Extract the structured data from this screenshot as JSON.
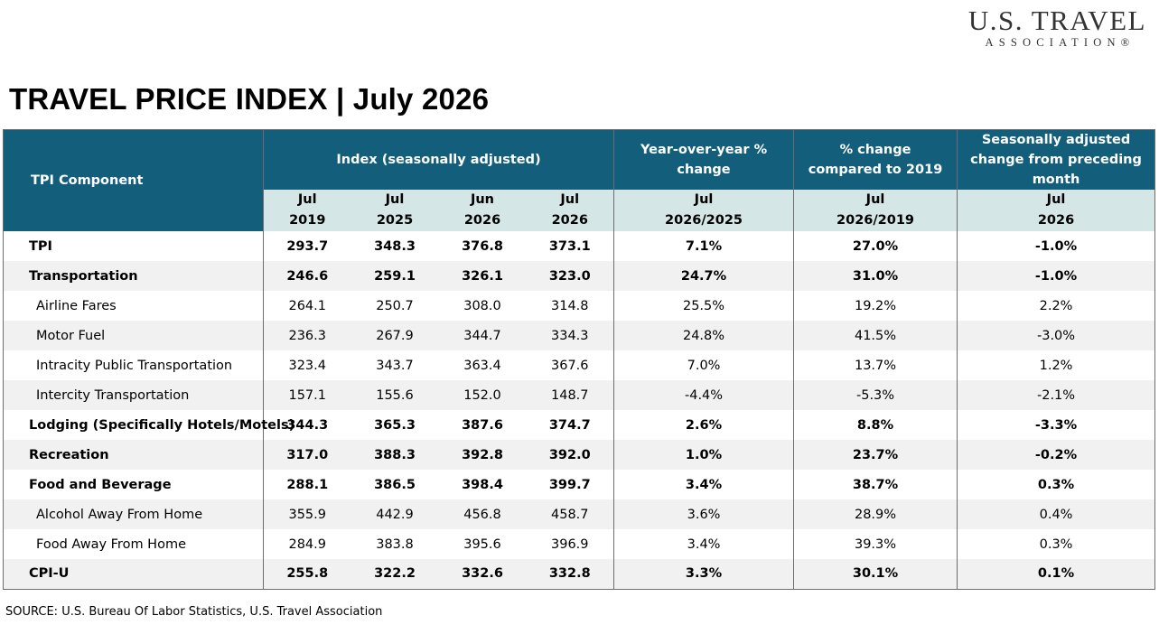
{
  "logo": {
    "main": "U.S. TRAVEL",
    "sub": "ASSOCIATION®"
  },
  "title": "TRAVEL PRICE INDEX  | July 2026",
  "table": {
    "component_header": "TPI Component",
    "group_headers": {
      "index": "Index  (seasonally adjusted)",
      "yoy": "Year-over-year % change",
      "vs2019": "% change compared to 2019",
      "sa": "Seasonally adjusted change from preceding month"
    },
    "subheaders": [
      {
        "top": "Jul",
        "bottom": "2019"
      },
      {
        "top": "Jul",
        "bottom": "2025"
      },
      {
        "top": "Jun",
        "bottom": "2026"
      },
      {
        "top": "Jul",
        "bottom": "2026"
      },
      {
        "top": "Jul",
        "bottom": "2026/2025"
      },
      {
        "top": "Jul",
        "bottom": "2026/2019"
      },
      {
        "top": "Jul",
        "bottom": "2026"
      }
    ],
    "rows": [
      {
        "label": "TPI",
        "bold": true,
        "indent": false,
        "values": [
          "293.7",
          "348.3",
          "376.8",
          "373.1",
          "7.1%",
          "27.0%",
          "-1.0%"
        ]
      },
      {
        "label": "Transportation",
        "bold": true,
        "indent": false,
        "values": [
          "246.6",
          "259.1",
          "326.1",
          "323.0",
          "24.7%",
          "31.0%",
          "-1.0%"
        ]
      },
      {
        "label": "Airline Fares",
        "bold": false,
        "indent": true,
        "values": [
          "264.1",
          "250.7",
          "308.0",
          "314.8",
          "25.5%",
          "19.2%",
          "2.2%"
        ]
      },
      {
        "label": "Motor Fuel",
        "bold": false,
        "indent": true,
        "values": [
          "236.3",
          "267.9",
          "344.7",
          "334.3",
          "24.8%",
          "41.5%",
          "-3.0%"
        ]
      },
      {
        "label": "Intracity Public Transportation",
        "bold": false,
        "indent": true,
        "values": [
          "323.4",
          "343.7",
          "363.4",
          "367.6",
          "7.0%",
          "13.7%",
          "1.2%"
        ]
      },
      {
        "label": "Intercity Transportation",
        "bold": false,
        "indent": true,
        "values": [
          "157.1",
          "155.6",
          "152.0",
          "148.7",
          "-4.4%",
          "-5.3%",
          "-2.1%"
        ]
      },
      {
        "label": "Lodging (Specifically Hotels/Motels)",
        "bold": true,
        "indent": false,
        "values": [
          "344.3",
          "365.3",
          "387.6",
          "374.7",
          "2.6%",
          "8.8%",
          "-3.3%"
        ]
      },
      {
        "label": "Recreation",
        "bold": true,
        "indent": false,
        "values": [
          "317.0",
          "388.3",
          "392.8",
          "392.0",
          "1.0%",
          "23.7%",
          "-0.2%"
        ]
      },
      {
        "label": "Food and Beverage",
        "bold": true,
        "indent": false,
        "values": [
          "288.1",
          "386.5",
          "398.4",
          "399.7",
          "3.4%",
          "38.7%",
          "0.3%"
        ]
      },
      {
        "label": "Alcohol Away From Home",
        "bold": false,
        "indent": true,
        "values": [
          "355.9",
          "442.9",
          "456.8",
          "458.7",
          "3.6%",
          "28.9%",
          "0.4%"
        ]
      },
      {
        "label": "Food Away From Home",
        "bold": false,
        "indent": true,
        "values": [
          "284.9",
          "383.8",
          "395.6",
          "396.9",
          "3.4%",
          "39.3%",
          "0.3%"
        ]
      },
      {
        "label": "CPI-U",
        "bold": true,
        "indent": false,
        "values": [
          "255.8",
          "322.2",
          "332.6",
          "332.8",
          "3.3%",
          "30.1%",
          "0.1%"
        ]
      }
    ]
  },
  "source": "SOURCE: U.S. Bureau Of Labor Statistics, U.S. Travel Association",
  "colors": {
    "header_bg": "#125e7b",
    "subheader_bg": "#d4e6e6",
    "alt_row_bg": "#f1f1f1",
    "border": "#6d6d6d"
  }
}
